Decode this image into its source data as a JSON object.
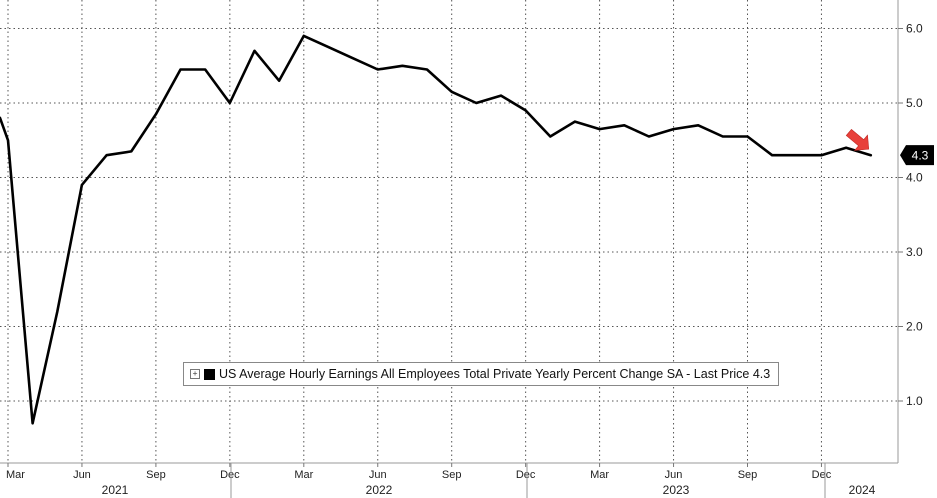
{
  "chart_data": {
    "type": "line",
    "title": "",
    "xlabel": "",
    "ylabel": "",
    "ylim": [
      0.2,
      6.4
    ],
    "y_ticks": [
      1.0,
      2.0,
      3.0,
      4.0,
      5.0,
      6.0
    ],
    "y_tick_labels": [
      "1.0",
      "2.0",
      "3.0",
      "4.0",
      "5.0",
      "6.0"
    ],
    "y_axis_side": "right",
    "grid": true,
    "grid_style": "dotted",
    "legend_placement": "bottom-center",
    "line_color": "#000000",
    "arrow_color": "#e8403a",
    "month_ticks": [
      "Mar",
      "Jun",
      "Sep",
      "Dec",
      "Mar",
      "Jun",
      "Sep",
      "Dec",
      "Mar",
      "Jun",
      "Sep",
      "Dec"
    ],
    "year_labels": [
      "2021",
      "2022",
      "2023",
      "2024"
    ],
    "series": [
      {
        "name": "US Average Hourly Earnings All Employees Total Private Yearly Percent Change SA - Last Price 4.3",
        "x": [
          "2021-02",
          "2021-03",
          "2021-04",
          "2021-05",
          "2021-06",
          "2021-07",
          "2021-08",
          "2021-09",
          "2021-10",
          "2021-11",
          "2021-12",
          "2022-01",
          "2022-02",
          "2022-03",
          "2022-04",
          "2022-05",
          "2022-06",
          "2022-07",
          "2022-08",
          "2022-09",
          "2022-10",
          "2022-11",
          "2022-12",
          "2023-01",
          "2023-02",
          "2023-03",
          "2023-04",
          "2023-05",
          "2023-06",
          "2023-07",
          "2023-08",
          "2023-09",
          "2023-10",
          "2023-11",
          "2023-12",
          "2024-01",
          "2024-02"
        ],
        "values": [
          4.8,
          4.5,
          0.7,
          2.2,
          3.9,
          4.3,
          4.35,
          4.85,
          5.45,
          5.45,
          5.0,
          5.7,
          5.3,
          5.9,
          5.75,
          5.6,
          5.45,
          5.5,
          5.45,
          5.15,
          5.0,
          5.1,
          4.9,
          4.55,
          4.75,
          4.65,
          4.7,
          4.55,
          4.65,
          4.7,
          4.55,
          4.55,
          4.3,
          4.3,
          4.3,
          4.4,
          4.3
        ]
      }
    ],
    "last_price_label": "4.3",
    "legend_expander": "+"
  }
}
